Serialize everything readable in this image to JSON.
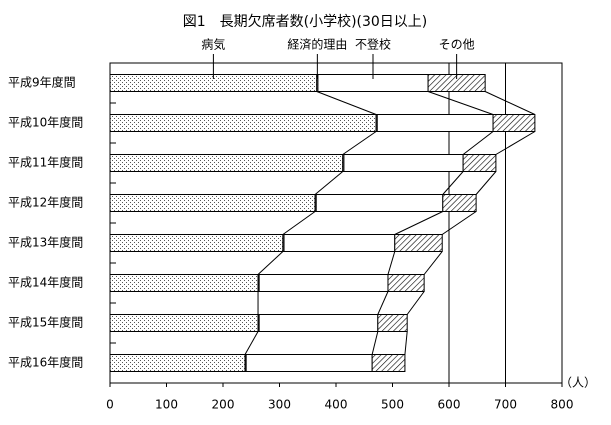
{
  "chart_data": {
    "type": "stacked-barh",
    "title": "図1　長期欠席者数(小学校)(30日以上)",
    "unit_label": "（人）",
    "categories": [
      "平成9年度間",
      "平成10年度間",
      "平成11年度間",
      "平成12年度間",
      "平成13年度間",
      "平成14年度間",
      "平成15年度間",
      "平成16年度間"
    ],
    "series": [
      {
        "name": "病気",
        "color": "#000000",
        "pattern": "dots",
        "values": [
          366,
          471,
          412,
          363,
          306,
          262,
          262,
          239
        ]
      },
      {
        "name": "経済的理由",
        "color": "#000000",
        "pattern": "none",
        "values": [
          2,
          2,
          2,
          2,
          2,
          2,
          2,
          2
        ]
      },
      {
        "name": "不登校",
        "color": "#000000",
        "pattern": "none",
        "values": [
          195,
          205,
          211,
          224,
          196,
          228,
          210,
          223
        ]
      },
      {
        "name": "その他",
        "color": "#000000",
        "pattern": "hatch",
        "values": [
          101,
          74,
          58,
          59,
          84,
          64,
          52,
          58
        ]
      }
    ],
    "xlim": [
      0,
      800
    ],
    "xticks": [
      0,
      100,
      200,
      300,
      400,
      500,
      600,
      700,
      800
    ],
    "gridlines": [
      600,
      700
    ]
  }
}
